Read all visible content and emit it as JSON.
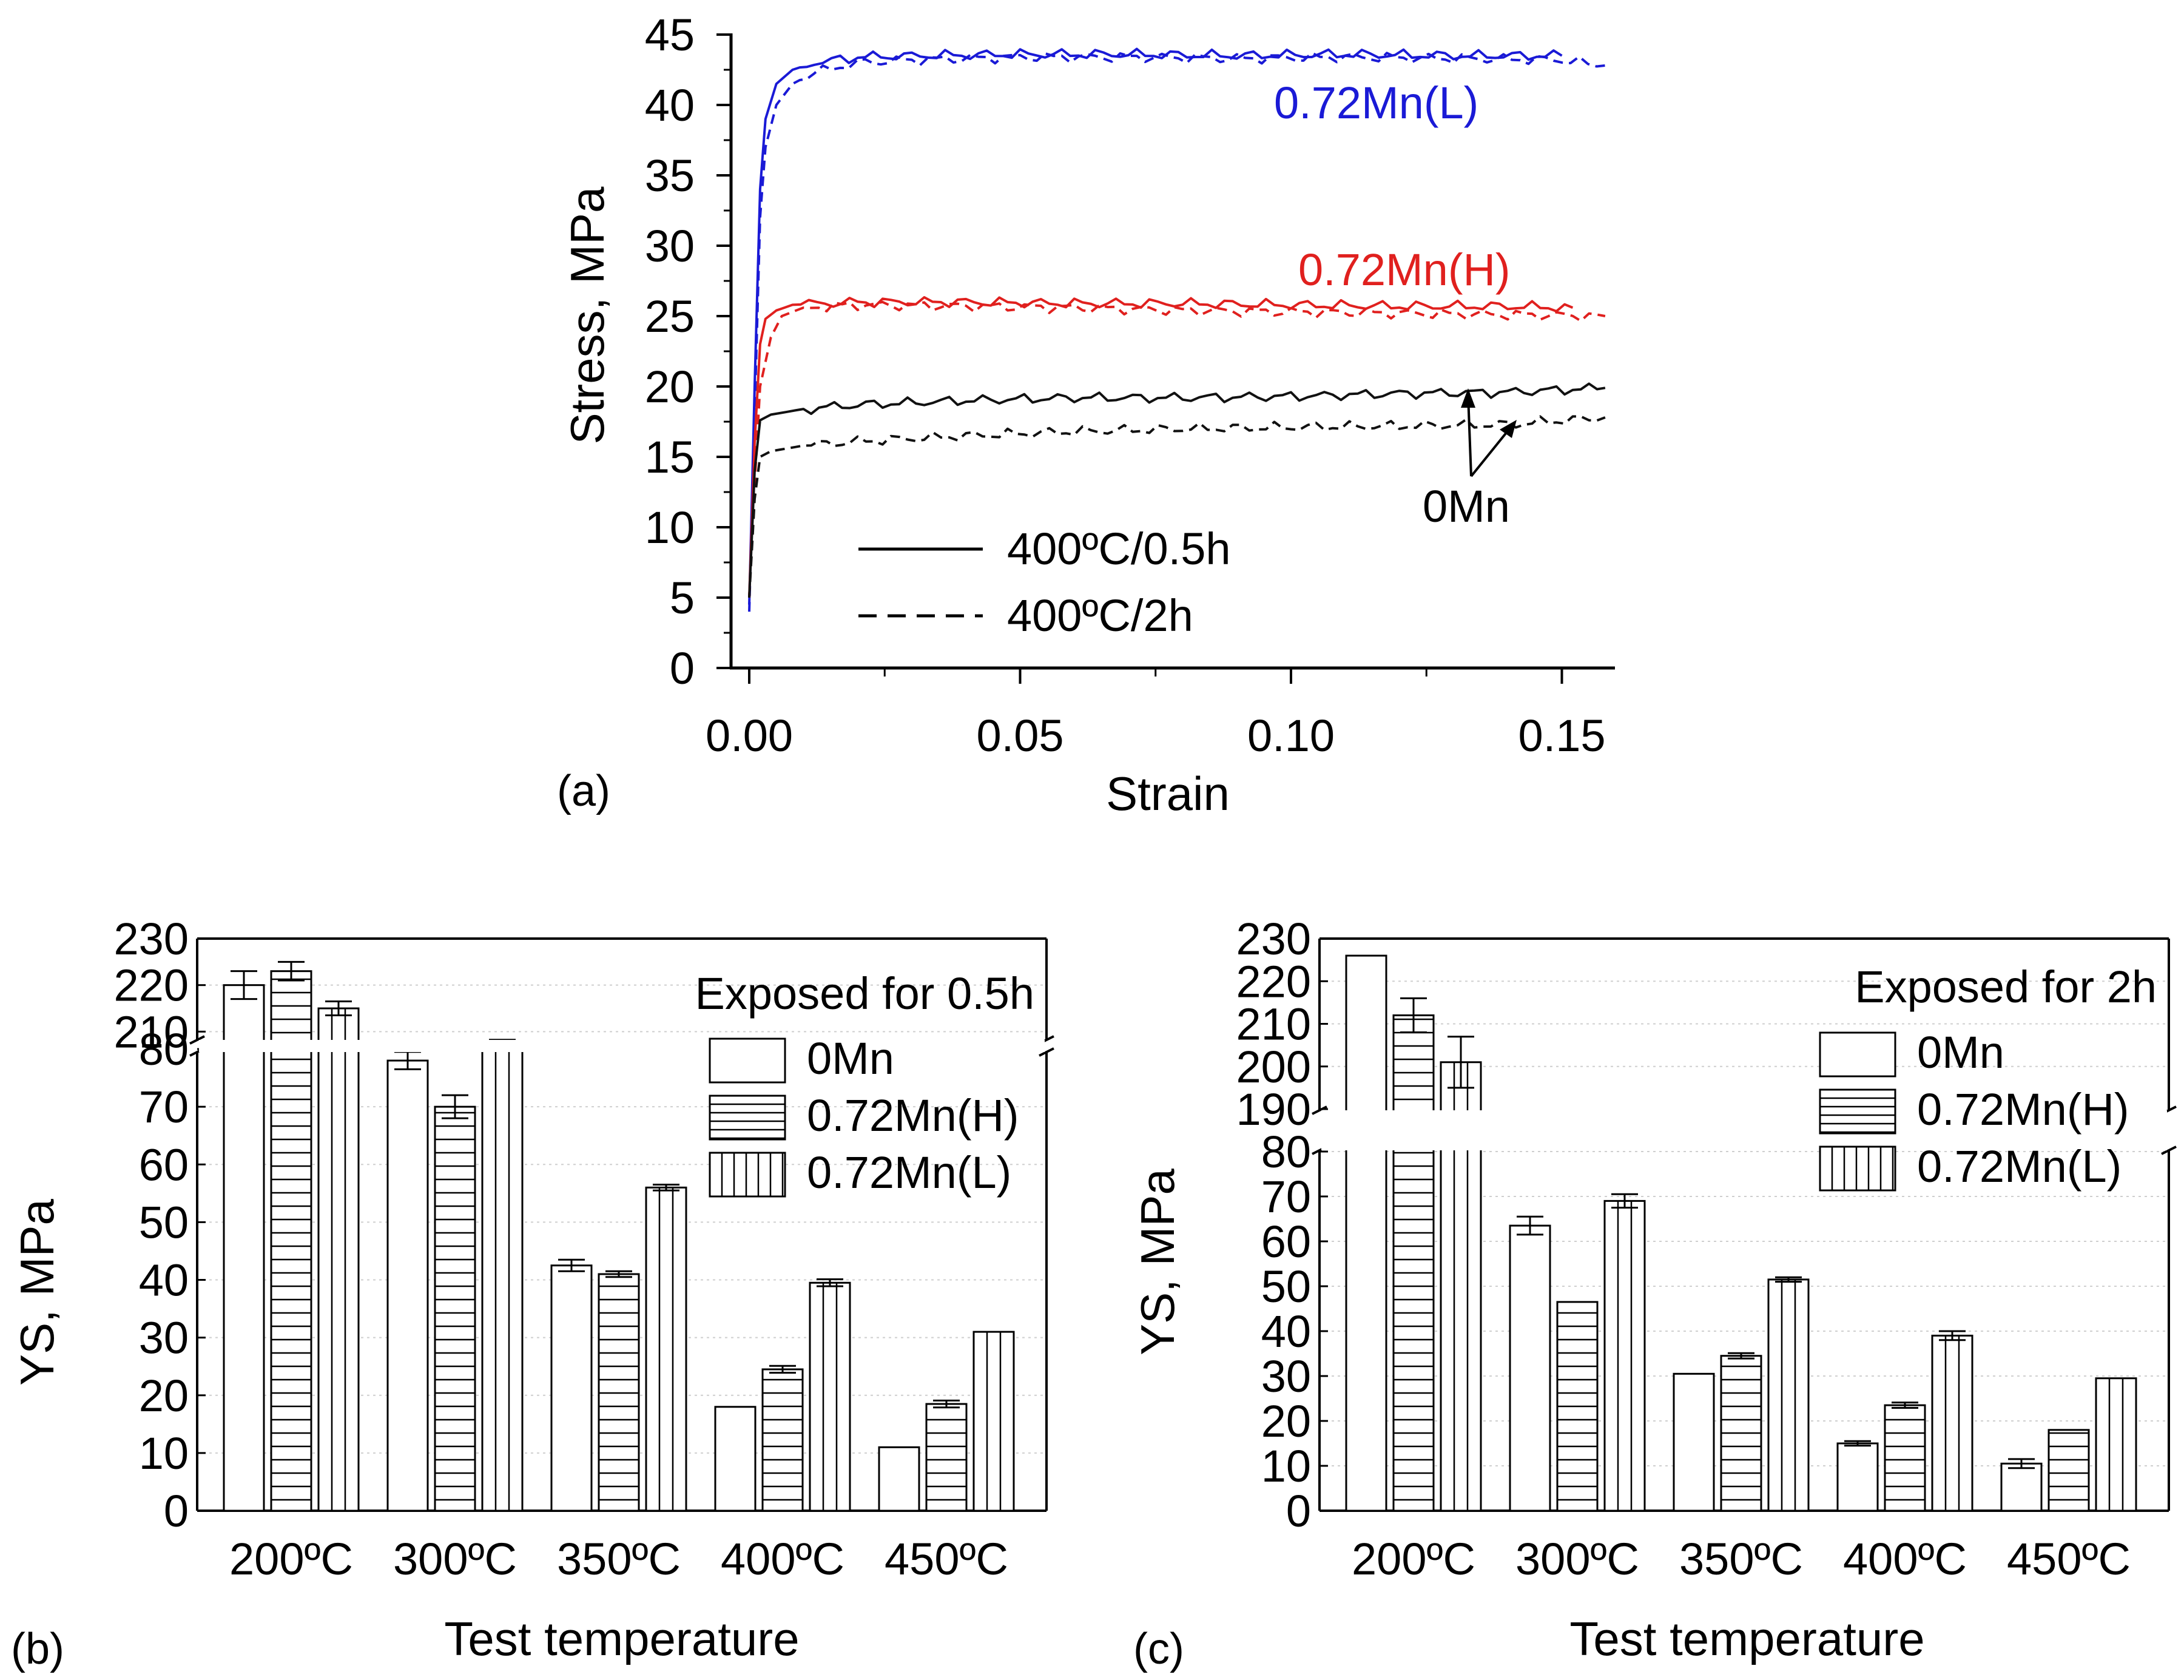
{
  "chart_data": [
    {
      "panel": "(a)",
      "type": "line",
      "xlabel": "Strain",
      "ylabel": "Stress, MPa",
      "xlim": [
        -0.004,
        0.16
      ],
      "ylim": [
        0,
        45
      ],
      "xticks": [
        "0.00",
        "0.05",
        "0.10",
        "0.15"
      ],
      "yticks": [
        "0",
        "5",
        "10",
        "15",
        "20",
        "25",
        "30",
        "35",
        "40",
        "45"
      ],
      "legend": [
        {
          "style": "solid",
          "label": "400ºC/0.5h"
        },
        {
          "style": "dashed",
          "label": "400ºC/2h"
        }
      ],
      "annotations": {
        "mn_l": "0.72Mn(L)",
        "mn_h": "0.72Mn(H)",
        "mn_0": "0Mn"
      },
      "colors": {
        "mn_l": "#1a1ad6",
        "mn_h": "#e0201e",
        "mn_0": "#111111"
      },
      "series": [
        {
          "name": "0.72Mn(L) 400ºC/0.5h",
          "color": "#1a1ad6",
          "style": "solid",
          "x": [
            0,
            0.001,
            0.002,
            0.003,
            0.005,
            0.008,
            0.012,
            0.02,
            0.03,
            0.05,
            0.07,
            0.09,
            0.11,
            0.13,
            0.15
          ],
          "y": [
            4.5,
            20,
            34,
            39,
            41.5,
            42.5,
            43,
            43.4,
            43.5,
            43.6,
            43.6,
            43.5,
            43.6,
            43.5,
            43.5
          ]
        },
        {
          "name": "0.72Mn(L) 400ºC/2h",
          "color": "#1a1ad6",
          "style": "dashed",
          "x": [
            0,
            0.001,
            0.002,
            0.003,
            0.005,
            0.008,
            0.012,
            0.02,
            0.03,
            0.05,
            0.07,
            0.09,
            0.11,
            0.13,
            0.15,
            0.158
          ],
          "y": [
            4,
            18,
            32,
            37,
            40,
            41.5,
            42.3,
            43,
            43.2,
            43.4,
            43.4,
            43.3,
            43.4,
            43.3,
            43.2,
            42.8
          ]
        },
        {
          "name": "0.72Mn(H) 400ºC/0.5h",
          "color": "#e0201e",
          "style": "solid",
          "x": [
            0,
            0.001,
            0.002,
            0.003,
            0.005,
            0.008,
            0.02,
            0.04,
            0.06,
            0.08,
            0.1,
            0.12,
            0.14,
            0.152
          ],
          "y": [
            5,
            16,
            23,
            24.8,
            25.4,
            25.8,
            26,
            26,
            25.9,
            25.9,
            25.8,
            25.7,
            25.7,
            25.6
          ]
        },
        {
          "name": "0.72Mn(H) 400ºC/2h",
          "color": "#e0201e",
          "style": "dashed",
          "x": [
            0,
            0.001,
            0.002,
            0.004,
            0.006,
            0.01,
            0.02,
            0.04,
            0.06,
            0.08,
            0.1,
            0.12,
            0.14,
            0.158
          ],
          "y": [
            5,
            13,
            20,
            23.5,
            25,
            25.6,
            25.8,
            25.7,
            25.6,
            25.4,
            25.3,
            25.2,
            25.1,
            25
          ]
        },
        {
          "name": "0Mn 400ºC/0.5h",
          "color": "#111111",
          "style": "solid",
          "x": [
            0,
            0.001,
            0.002,
            0.004,
            0.01,
            0.02,
            0.04,
            0.06,
            0.08,
            0.1,
            0.12,
            0.14,
            0.158
          ],
          "y": [
            5,
            14,
            17.6,
            18,
            18.4,
            18.7,
            19,
            19.2,
            19.2,
            19.3,
            19.5,
            19.6,
            19.9
          ]
        },
        {
          "name": "0Mn 400ºC/2h",
          "color": "#111111",
          "style": "dashed",
          "x": [
            0,
            0.001,
            0.002,
            0.004,
            0.01,
            0.02,
            0.04,
            0.06,
            0.08,
            0.1,
            0.12,
            0.14,
            0.158
          ],
          "y": [
            5,
            12,
            15,
            15.4,
            15.8,
            16.1,
            16.5,
            16.8,
            17,
            17.1,
            17.2,
            17.3,
            17.8
          ]
        }
      ]
    },
    {
      "panel": "(b)",
      "type": "bar",
      "title": "Exposed for 0.5h",
      "xlabel": "Test temperature",
      "ylabel": "YS, MPa",
      "categories": [
        "200ºC",
        "300ºC",
        "350ºC",
        "400ºC",
        "450ºC"
      ],
      "yticks_lower": [
        "0",
        "10",
        "20",
        "30",
        "40",
        "50",
        "60",
        "70",
        "80"
      ],
      "yticks_upper": [
        "210",
        "220",
        "230"
      ],
      "ylim_lower": [
        0,
        82
      ],
      "ylim_upper": [
        209,
        230
      ],
      "series": [
        {
          "name": "0Mn",
          "pattern": "none",
          "values": [
            220,
            78,
            42.5,
            18,
            11
          ],
          "errors": [
            3,
            1.5,
            1,
            0,
            0
          ]
        },
        {
          "name": "0.72Mn(H)",
          "pattern": "horizontal",
          "values": [
            223,
            70,
            41,
            24.5,
            18.5
          ],
          "errors": [
            2,
            2,
            0.5,
            0.6,
            0.6
          ]
        },
        {
          "name": "0.72Mn(L)",
          "pattern": "vertical",
          "values": [
            215,
            81,
            56,
            39.5,
            31
          ],
          "errors": [
            1.5,
            0.6,
            0.5,
            0.6,
            0
          ]
        }
      ]
    },
    {
      "panel": "(c)",
      "type": "bar",
      "title": "Exposed for 2h",
      "xlabel": "Test temperature",
      "ylabel": "YS, MPa",
      "categories": [
        "200ºC",
        "300ºC",
        "350ºC",
        "400ºC",
        "450ºC"
      ],
      "yticks_lower": [
        "0",
        "10",
        "20",
        "30",
        "40",
        "50",
        "60",
        "70",
        "80"
      ],
      "yticks_upper": [
        "190",
        "200",
        "210",
        "220",
        "230"
      ],
      "ylim_lower": [
        0,
        80
      ],
      "ylim_upper": [
        190,
        230
      ],
      "series": [
        {
          "name": "0Mn",
          "pattern": "none",
          "values": [
            226,
            63.5,
            30.5,
            15,
            10.5
          ],
          "errors": [
            0,
            2,
            0,
            0.5,
            1
          ]
        },
        {
          "name": "0.72Mn(H)",
          "pattern": "horizontal",
          "values": [
            212,
            46.5,
            34.5,
            23.5,
            18
          ],
          "errors": [
            4,
            0,
            0.6,
            0.6,
            0
          ]
        },
        {
          "name": "0.72Mn(L)",
          "pattern": "vertical",
          "values": [
            201,
            69,
            51.5,
            39,
            29.5
          ],
          "errors": [
            6,
            1.5,
            0.5,
            1,
            0
          ]
        }
      ]
    }
  ]
}
